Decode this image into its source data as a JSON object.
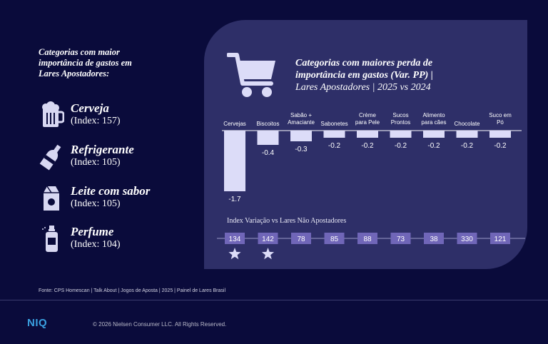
{
  "left_panel": {
    "title_lines": [
      "Categorias com maior",
      "importância de gastos em",
      "Lares Apostadores:"
    ],
    "categories": [
      {
        "name": "Cerveja",
        "index": "(Index: 157)",
        "icon": "beer-mug-icon"
      },
      {
        "name": "Refrigerante",
        "index": "(Index: 105)",
        "icon": "soda-bottle-icon"
      },
      {
        "name": "Leite com sabor",
        "index": "(Index: 105)",
        "icon": "milk-carton-icon"
      },
      {
        "name": "Perfume",
        "index": "(Index: 104)",
        "icon": "perfume-bottle-icon"
      }
    ]
  },
  "panel": {
    "title_line1": "Categorias com maiores perda de",
    "title_line2": "importância em gastos (Var. PP) |",
    "title_line3": "Lares Apostadores | 2025 vs 2024",
    "icon": "shopping-cart-icon",
    "index_label": "Index Variação vs Lares Não Apostadores"
  },
  "chart_data": {
    "type": "bar",
    "title": "Categorias com maiores perda de importância em gastos (Var. PP) | Lares Apostadores | 2025 vs 2024",
    "categories": [
      [
        "Cervejas"
      ],
      [
        "Biscoitos"
      ],
      [
        "Sabão +",
        "Amaciante"
      ],
      [
        "Sabonetes"
      ],
      [
        "Crème",
        "para Pele"
      ],
      [
        "Sucos",
        "Prontos"
      ],
      [
        "Alimento",
        "para cães"
      ],
      [
        "Chocolate"
      ],
      [
        "Suco em",
        "Pó"
      ]
    ],
    "values": [
      -1.7,
      -0.4,
      -0.3,
      -0.2,
      -0.2,
      -0.2,
      -0.2,
      -0.2,
      -0.2
    ],
    "value_labels": [
      "-1.7",
      "-0.4",
      "-0.3",
      "-0.2",
      "-0.2",
      "-0.2",
      "-0.2",
      "-0.2",
      "-0.2"
    ],
    "index_values": [
      134,
      142,
      78,
      85,
      88,
      73,
      38,
      330,
      121
    ],
    "starred": [
      true,
      true,
      false,
      false,
      false,
      false,
      false,
      false,
      false
    ],
    "ylim": [
      -1.7,
      0
    ],
    "colors": {
      "bar": "#dcdcf8",
      "index_box": "#7066b8",
      "star": "#dcdcf8",
      "axis": "#ffffff"
    }
  },
  "footer": {
    "source": "Fonte: CPS Homescan | Talk About | Jogos de Aposta | 2025 | Painel de Lares Brasil",
    "logo": "NIQ",
    "copyright": "© 2026 Nielsen Consumer LLC. All Rights Reserved."
  }
}
